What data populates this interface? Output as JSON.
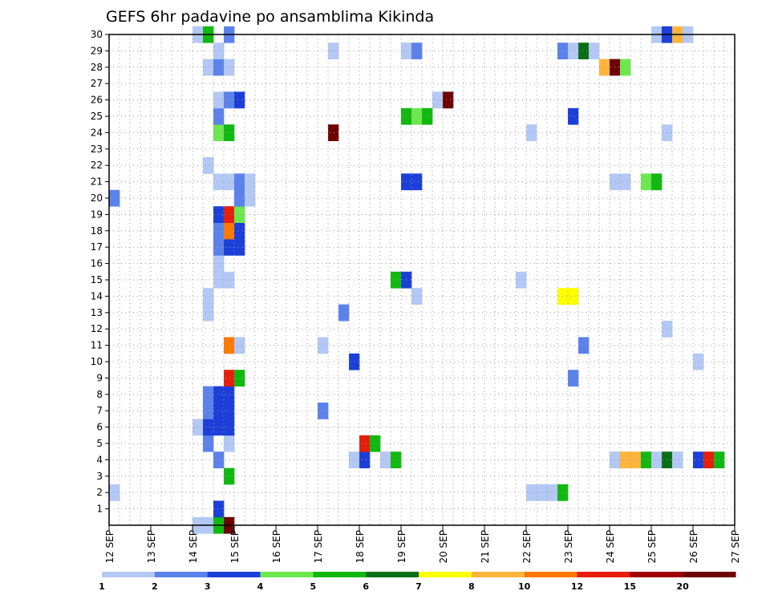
{
  "chart_data": {
    "type": "heatmap",
    "title": "GEFS 6hr padavine po ansamblima Kikinda",
    "xlabel": "",
    "ylabel": "",
    "x_ticks": [
      "12 SEP",
      "13 SEP",
      "14 SEP",
      "15 SEP",
      "16 SEP",
      "17 SEP",
      "18 SEP",
      "19 SEP",
      "20 SEP",
      "21 SEP",
      "22 SEP",
      "23 SEP",
      "24 SEP",
      "25 SEP",
      "26 SEP",
      "27 SEP"
    ],
    "x_range_days": [
      12,
      27
    ],
    "x_step": "6 hours (4 steps per day)",
    "y_range": [
      0,
      30
    ],
    "y_ticks": [
      1,
      2,
      3,
      4,
      5,
      6,
      7,
      8,
      9,
      10,
      11,
      12,
      13,
      14,
      15,
      16,
      17,
      18,
      19,
      20,
      21,
      22,
      23,
      24,
      25,
      26,
      27,
      28,
      29,
      30
    ],
    "grid": true,
    "colorbar": {
      "labels": [
        "1",
        "2",
        "3",
        "4",
        "5",
        "6",
        "7",
        "8",
        "10",
        "12",
        "15",
        "20"
      ],
      "colors": [
        "#b4c8f5",
        "#5b82eb",
        "#1b3fd8",
        "#6be84e",
        "#10b810",
        "#0a6e16",
        "#ffff00",
        "#ffb43c",
        "#ff7800",
        "#e61e0a",
        "#a00000",
        "#6e0000"
      ]
    },
    "cells": [
      [
        0,
        14.0,
        1
      ],
      [
        0,
        14.25,
        1
      ],
      [
        0,
        14.5,
        5
      ],
      [
        0,
        14.75,
        12
      ],
      [
        1,
        14.5,
        3
      ],
      [
        2,
        12.0,
        1
      ],
      [
        2,
        22.0,
        1
      ],
      [
        2,
        22.25,
        1
      ],
      [
        2,
        22.5,
        1
      ],
      [
        2,
        22.75,
        5
      ],
      [
        3,
        14.75,
        5
      ],
      [
        4,
        14.5,
        2
      ],
      [
        4,
        17.75,
        1
      ],
      [
        4,
        18.0,
        3
      ],
      [
        4,
        18.5,
        1
      ],
      [
        4,
        18.75,
        5
      ],
      [
        4,
        24.0,
        1
      ],
      [
        4,
        24.25,
        8
      ],
      [
        4,
        24.5,
        8
      ],
      [
        4,
        24.75,
        5
      ],
      [
        4,
        25.0,
        1
      ],
      [
        4,
        25.25,
        6
      ],
      [
        4,
        25.5,
        1
      ],
      [
        4,
        26.0,
        3
      ],
      [
        4,
        26.25,
        10
      ],
      [
        4,
        26.5,
        5
      ],
      [
        5,
        14.25,
        2
      ],
      [
        5,
        14.75,
        1
      ],
      [
        5,
        18.0,
        10
      ],
      [
        5,
        18.25,
        5
      ],
      [
        6,
        14.0,
        1
      ],
      [
        6,
        14.25,
        3
      ],
      [
        6,
        14.5,
        3
      ],
      [
        6,
        14.75,
        3
      ],
      [
        7,
        14.25,
        2
      ],
      [
        7,
        14.5,
        3
      ],
      [
        7,
        14.75,
        3
      ],
      [
        7,
        17.0,
        2
      ],
      [
        8,
        14.25,
        2
      ],
      [
        8,
        14.5,
        3
      ],
      [
        8,
        14.75,
        3
      ],
      [
        9,
        14.75,
        10
      ],
      [
        9,
        15.0,
        5
      ],
      [
        9,
        23.0,
        2
      ],
      [
        10,
        17.75,
        3
      ],
      [
        10,
        26.0,
        1
      ],
      [
        11,
        14.75,
        9
      ],
      [
        11,
        15.0,
        1
      ],
      [
        11,
        17.0,
        1
      ],
      [
        11,
        23.25,
        2
      ],
      [
        12,
        25.25,
        1
      ],
      [
        13,
        14.25,
        1
      ],
      [
        13,
        17.5,
        2
      ],
      [
        14,
        14.25,
        1
      ],
      [
        14,
        19.25,
        1
      ],
      [
        14,
        22.75,
        7
      ],
      [
        14,
        23.0,
        7
      ],
      [
        15,
        14.5,
        1
      ],
      [
        15,
        14.75,
        1
      ],
      [
        15,
        18.75,
        5
      ],
      [
        15,
        19.0,
        3
      ],
      [
        15,
        21.75,
        1
      ],
      [
        16,
        14.5,
        1
      ],
      [
        17,
        14.5,
        2
      ],
      [
        17,
        14.75,
        3
      ],
      [
        17,
        15.0,
        3
      ],
      [
        18,
        14.5,
        2
      ],
      [
        18,
        14.75,
        9
      ],
      [
        18,
        15.0,
        3
      ],
      [
        19,
        14.5,
        3
      ],
      [
        19,
        14.75,
        10
      ],
      [
        19,
        15.0,
        4
      ],
      [
        20,
        12.0,
        2
      ],
      [
        20,
        15.0,
        2
      ],
      [
        20,
        15.25,
        1
      ],
      [
        21,
        14.5,
        1
      ],
      [
        21,
        14.75,
        1
      ],
      [
        21,
        15.0,
        2
      ],
      [
        21,
        15.25,
        1
      ],
      [
        21,
        19.0,
        3
      ],
      [
        21,
        19.25,
        3
      ],
      [
        21,
        24.0,
        1
      ],
      [
        21,
        24.25,
        1
      ],
      [
        21,
        24.75,
        4
      ],
      [
        21,
        25.0,
        5
      ],
      [
        22,
        14.25,
        1
      ],
      [
        24,
        14.5,
        4
      ],
      [
        24,
        14.75,
        5
      ],
      [
        24,
        17.25,
        12
      ],
      [
        24,
        22.0,
        1
      ],
      [
        24,
        25.25,
        1
      ],
      [
        25,
        14.5,
        2
      ],
      [
        25,
        19.0,
        5
      ],
      [
        25,
        19.25,
        4
      ],
      [
        25,
        19.5,
        5
      ],
      [
        25,
        23.0,
        3
      ],
      [
        26,
        14.5,
        1
      ],
      [
        26,
        14.75,
        2
      ],
      [
        26,
        15.0,
        3
      ],
      [
        26,
        19.75,
        1
      ],
      [
        26,
        20.0,
        12
      ],
      [
        28,
        14.25,
        1
      ],
      [
        28,
        14.5,
        2
      ],
      [
        28,
        14.75,
        1
      ],
      [
        28,
        23.75,
        8
      ],
      [
        28,
        24.0,
        12
      ],
      [
        28,
        24.25,
        4
      ],
      [
        29,
        14.5,
        1
      ],
      [
        29,
        17.25,
        1
      ],
      [
        29,
        19.0,
        1
      ],
      [
        29,
        19.25,
        2
      ],
      [
        29,
        22.75,
        2
      ],
      [
        29,
        23.0,
        1
      ],
      [
        29,
        23.25,
        6
      ],
      [
        29,
        23.5,
        1
      ],
      [
        30,
        14.0,
        1
      ],
      [
        30,
        14.25,
        5
      ],
      [
        30,
        14.75,
        2
      ],
      [
        30,
        25.0,
        1
      ],
      [
        30,
        25.25,
        3
      ],
      [
        30,
        25.5,
        8
      ],
      [
        30,
        25.75,
        1
      ]
    ],
    "cells_format": "[y_row, x_day_start, color_index_1_based]"
  }
}
